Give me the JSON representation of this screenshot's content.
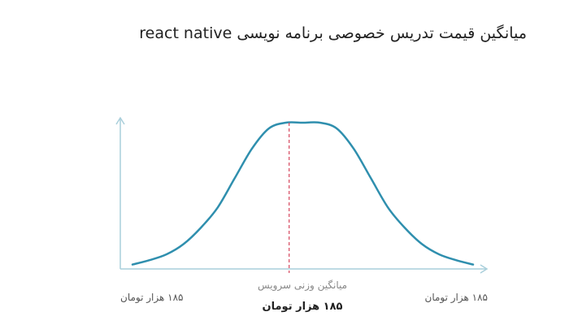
{
  "title": "میانگین قیمت تدریس خصوصی برنامه نویسی react native",
  "colors": {
    "curve": "#2f8fae",
    "axis": "#a9cfdb",
    "mean_line": "#d6455c",
    "background": "#ffffff"
  },
  "chart_data": {
    "type": "line",
    "title": "میانگین قیمت تدریس خصوصی برنامه نویسی react native",
    "series": [
      {
        "x": [
          0,
          0.5,
          1,
          1.5,
          2,
          2.5,
          3,
          3.5,
          4,
          4.5,
          5,
          5.5,
          6,
          6.5,
          7,
          7.5,
          8,
          8.5,
          9,
          9.5,
          10
        ],
        "values": [
          3,
          6,
          10,
          17,
          28,
          42,
          62,
          82,
          96,
          100,
          100,
          100,
          96,
          82,
          62,
          42,
          28,
          17,
          10,
          6,
          3
        ]
      }
    ],
    "xlim": [
      0,
      10
    ],
    "ylim": [
      0,
      115
    ],
    "grid": false,
    "mean_marker": {
      "x": 4.6,
      "style": "dashed"
    },
    "x_tick_labels": {
      "left": "۱۸۵ هزار تومان",
      "center_caption": "میانگین وزنی سرویس",
      "center_value": "۱۸۵ هزار تومان",
      "right": "۱۸۵ هزار تومان"
    }
  }
}
